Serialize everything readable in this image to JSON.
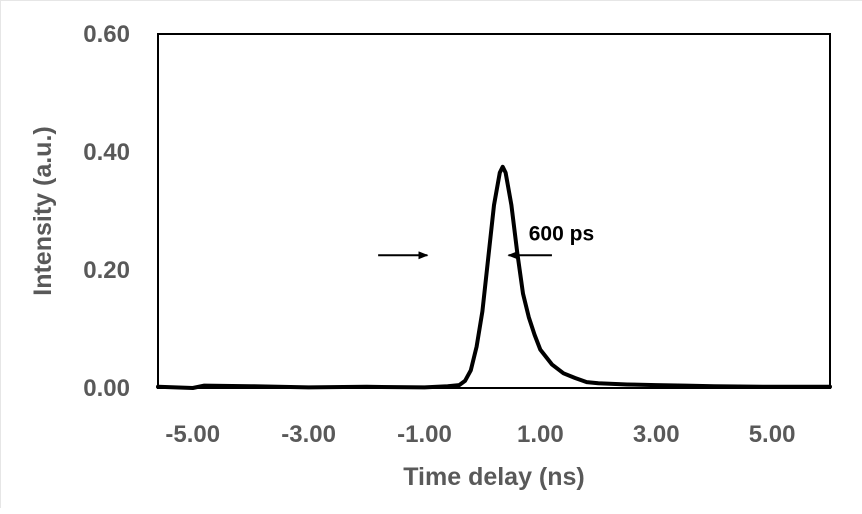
{
  "chart_data": {
    "type": "line",
    "title": "",
    "xlabel": "Time delay (ns)",
    "ylabel": "Intensity (a.u.)",
    "xlim": [
      -5.6,
      6.0
    ],
    "ylim": [
      0,
      0.6
    ],
    "x_tick_labels": [
      {
        "value": -5,
        "label": "-5.00"
      },
      {
        "value": -3,
        "label": "-3.00"
      },
      {
        "value": -1,
        "label": "-1.00"
      },
      {
        "value": 1,
        "label": "1.00"
      },
      {
        "value": 3,
        "label": "3.00"
      },
      {
        "value": 5,
        "label": "5.00"
      }
    ],
    "y_tick_labels": [
      {
        "value": 0,
        "label": "0.00"
      },
      {
        "value": 0.2,
        "label": "0.20"
      },
      {
        "value": 0.4,
        "label": "0.40"
      },
      {
        "value": 0.6,
        "label": "0.60"
      }
    ],
    "grid": false,
    "legend": "none",
    "series": [
      {
        "color": "#000000",
        "points": [
          [
            -5.6,
            0.002
          ],
          [
            -5.0,
            0.0
          ],
          [
            -4.8,
            0.004
          ],
          [
            -4.0,
            0.003
          ],
          [
            -3.0,
            0.001
          ],
          [
            -2.0,
            0.002
          ],
          [
            -1.0,
            0.001
          ],
          [
            -0.6,
            0.003
          ],
          [
            -0.4,
            0.005
          ],
          [
            -0.3,
            0.012
          ],
          [
            -0.2,
            0.03
          ],
          [
            -0.1,
            0.07
          ],
          [
            0.0,
            0.13
          ],
          [
            0.1,
            0.22
          ],
          [
            0.2,
            0.31
          ],
          [
            0.3,
            0.365
          ],
          [
            0.35,
            0.375
          ],
          [
            0.4,
            0.365
          ],
          [
            0.5,
            0.31
          ],
          [
            0.6,
            0.23
          ],
          [
            0.7,
            0.16
          ],
          [
            0.8,
            0.12
          ],
          [
            0.9,
            0.09
          ],
          [
            1.0,
            0.065
          ],
          [
            1.2,
            0.04
          ],
          [
            1.4,
            0.025
          ],
          [
            1.6,
            0.017
          ],
          [
            1.8,
            0.01
          ],
          [
            2.0,
            0.008
          ],
          [
            2.5,
            0.006
          ],
          [
            3.0,
            0.005
          ],
          [
            3.5,
            0.004
          ],
          [
            4.0,
            0.003
          ],
          [
            5.0,
            0.002
          ],
          [
            6.0,
            0.002
          ]
        ]
      }
    ],
    "annotations": [
      {
        "text": "600 ps",
        "x": 0.8,
        "y": 0.25
      },
      {
        "type": "arrow",
        "from": [
          -1.8,
          0.225
        ],
        "to": [
          -0.95,
          0.225
        ]
      },
      {
        "type": "arrow",
        "from": [
          1.2,
          0.225
        ],
        "to": [
          0.45,
          0.225
        ]
      }
    ]
  }
}
